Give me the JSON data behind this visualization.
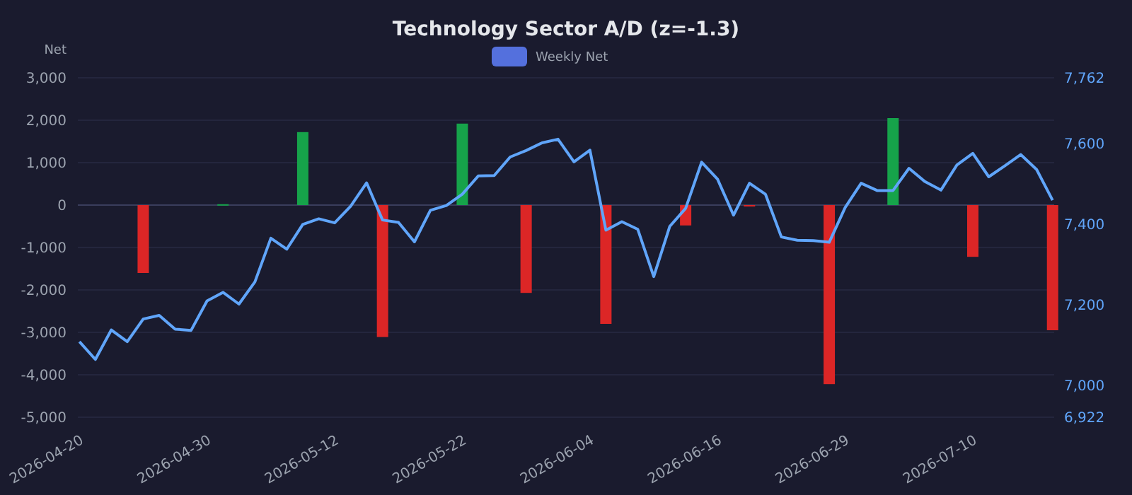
{
  "chart_data": {
    "type": "bar",
    "title": "Technology Sector A/D (z=-1.3)",
    "ylabel": "Net",
    "categories": [
      "2026-04-20",
      null,
      null,
      null,
      null,
      null,
      null,
      null,
      "2026-04-30",
      null,
      null,
      null,
      null,
      null,
      null,
      null,
      "2026-05-12",
      null,
      null,
      null,
      null,
      null,
      null,
      null,
      "2026-05-22",
      null,
      null,
      null,
      null,
      null,
      null,
      null,
      "2026-06-04",
      null,
      null,
      null,
      null,
      null,
      null,
      null,
      "2026-06-16",
      null,
      null,
      null,
      null,
      null,
      null,
      null,
      "2026-06-29",
      null,
      null,
      null,
      null,
      null,
      null,
      null,
      "2026-07-10",
      null,
      null,
      null,
      null,
      null
    ],
    "series": [
      {
        "name": "Weekly Net",
        "color": "#5470dd",
        "values": [
          null,
          null,
          null,
          null,
          -1600,
          null,
          null,
          null,
          null,
          20,
          null,
          null,
          null,
          null,
          1720,
          null,
          null,
          null,
          null,
          -3110,
          null,
          null,
          null,
          null,
          1920,
          null,
          null,
          null,
          -2070,
          null,
          null,
          null,
          null,
          -2800,
          null,
          null,
          null,
          null,
          -480,
          null,
          null,
          null,
          -20,
          null,
          null,
          null,
          null,
          -4220,
          null,
          null,
          null,
          2050,
          null,
          null,
          null,
          null,
          -1220,
          null,
          null,
          null,
          null,
          -2950
        ],
        "colors": [
          null,
          null,
          null,
          null,
          "#dc2626",
          null,
          null,
          null,
          null,
          "#16a34a",
          null,
          null,
          null,
          null,
          "#16a34a",
          null,
          null,
          null,
          null,
          "#dc2626",
          null,
          null,
          null,
          null,
          "#16a34a",
          null,
          null,
          null,
          "#dc2626",
          null,
          null,
          null,
          null,
          "#dc2626",
          null,
          null,
          null,
          null,
          "#dc2626",
          null,
          null,
          null,
          "#dc2626",
          null,
          null,
          null,
          null,
          "#dc2626",
          null,
          null,
          null,
          "#16a34a",
          null,
          null,
          null,
          null,
          "#dc2626",
          null,
          null,
          null,
          null,
          "#dc2626"
        ]
      },
      {
        "type": "line",
        "axis": "y2",
        "color": "#60a5fa",
        "values": [
          7109,
          7065,
          7138,
          7109,
          7165,
          7174,
          7140,
          7137,
          7210,
          7231,
          7202,
          7257,
          7365,
          7338,
          7399,
          7413,
          7403,
          7444,
          7502,
          7410,
          7404,
          7356,
          7434,
          7446,
          7474,
          7519,
          7520,
          7566,
          7582,
          7601,
          7610,
          7554,
          7583,
          7385,
          7406,
          7387,
          7270,
          7394,
          7439,
          7553,
          7511,
          7422,
          7501,
          7474,
          7368,
          7360,
          7359,
          7355,
          7441,
          7501,
          7483,
          7483,
          7538,
          7505,
          7484,
          7546,
          7575,
          7517,
          7544,
          7572,
          7535,
          7459
        ]
      }
    ],
    "ylim": [
      -5000,
      3000
    ],
    "yticks": [
      {
        "value": -5000,
        "label": "-5,000"
      },
      {
        "value": -4000,
        "label": "-4,000"
      },
      {
        "value": -3000,
        "label": "-3,000"
      },
      {
        "value": -2000,
        "label": "-2,000"
      },
      {
        "value": -1000,
        "label": "-1,000"
      },
      0,
      {
        "value": 1000,
        "label": "1,000"
      },
      {
        "value": 2000,
        "label": "2,000"
      },
      {
        "value": 3000,
        "label": "3,000"
      }
    ],
    "y2lim": [
      6922,
      7762
    ],
    "y2ticks": [
      {
        "value": 6922,
        "label": "6,922"
      },
      {
        "value": 7000,
        "label": "7,000"
      },
      {
        "value": 7200,
        "label": "7,200"
      },
      {
        "value": 7400,
        "label": "7,400"
      },
      {
        "value": 7600,
        "label": "7,600"
      },
      {
        "value": 7762,
        "label": "7,762"
      }
    ],
    "grid": "y",
    "legend": "top"
  }
}
